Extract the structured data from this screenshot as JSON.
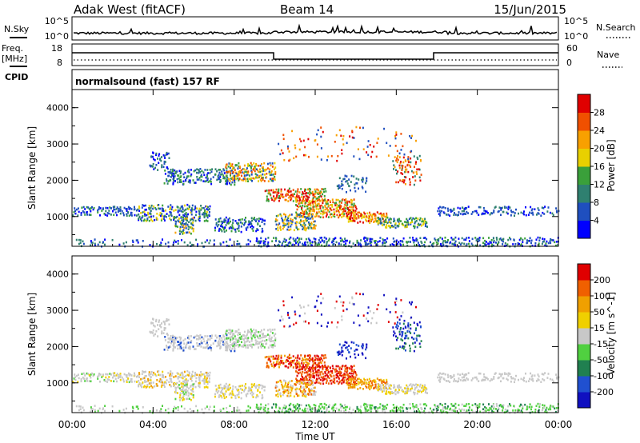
{
  "header": {
    "station": "Adak West (fitACF)",
    "beam": "Beam 14",
    "date": "15/Jun/2015"
  },
  "top_panel": {
    "left_label": "N.Sky",
    "left_ticks": [
      "10^5",
      "10^0"
    ],
    "right_ticks": [
      "10^5",
      "10^0"
    ],
    "right_label": "N.Search"
  },
  "freq_panel": {
    "left_label_1": "Freq.",
    "left_label_2": "[MHz]",
    "left_ticks": [
      "18",
      "8"
    ],
    "right_ticks": [
      "60",
      "0"
    ],
    "right_label": "Nave"
  },
  "cpid": {
    "label": "CPID",
    "program": "normalsound (fast) 157 RF"
  },
  "colors": {
    "power": [
      "#0000ff",
      "#1f4fbf",
      "#2f8070",
      "#3aa03a",
      "#e8d000",
      "#f8a000",
      "#f05000",
      "#e00000"
    ],
    "velocity": [
      "#1010c0",
      "#2050d0",
      "#208050",
      "#50d040",
      "#c8c8c8",
      "#f0d000",
      "#f0a000",
      "#f06000",
      "#e00000"
    ]
  },
  "chart_data": [
    {
      "type": "heatmap",
      "title": "",
      "xlabel": "",
      "ylabel": "Slant Range [km]",
      "x_ticks": [
        "00:00",
        "04:00",
        "08:00",
        "12:00",
        "16:00",
        "20:00",
        "00:00"
      ],
      "y_ticks": [
        "1000",
        "2000",
        "3000",
        "4000"
      ],
      "ylim": [
        180,
        4500
      ],
      "colorbar_label": "Power [dB]",
      "colorbar_ticks": [
        "4",
        "8",
        "12",
        "16",
        "20",
        "24",
        "28"
      ],
      "clim": [
        0,
        32
      ]
    },
    {
      "type": "heatmap",
      "title": "",
      "xlabel": "Time UT",
      "ylabel": "Slant Range [km]",
      "x_ticks": [
        "00:00",
        "04:00",
        "08:00",
        "12:00",
        "16:00",
        "20:00",
        "00:00"
      ],
      "y_ticks": [
        "1000",
        "2000",
        "3000",
        "4000"
      ],
      "ylim": [
        180,
        4500
      ],
      "colorbar_label": "Velocity [m s^-1]",
      "colorbar_ticks": [
        "200",
        "100",
        "50",
        "15",
        "-15",
        "-50",
        "-100",
        "-200"
      ]
    }
  ]
}
